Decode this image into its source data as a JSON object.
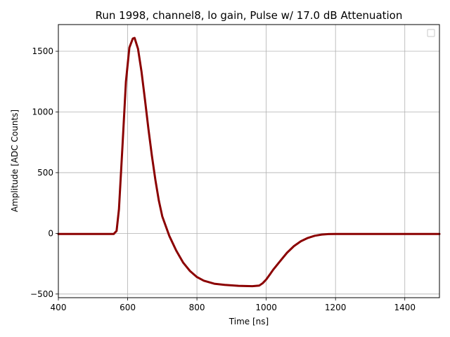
{
  "chart_data": {
    "type": "line",
    "title": "Run 1998, channel8, lo gain, Pulse w/ 17.0 dB Attenuation",
    "xlabel": "Time [ns]",
    "ylabel": "Amplitude [ADC Counts]",
    "xlim": [
      400,
      1500
    ],
    "ylim": [
      -530,
      1720
    ],
    "xticks": [
      400,
      600,
      800,
      1000,
      1200,
      1400
    ],
    "yticks": [
      -500,
      0,
      500,
      1000,
      1500
    ],
    "xtick_labels": [
      "400",
      "600",
      "800",
      "1000",
      "1200",
      "1400"
    ],
    "ytick_labels": [
      "−500",
      "0",
      "500",
      "1000",
      "1500"
    ],
    "grid": true,
    "legend": "top-right (empty)",
    "colors": {
      "series": "#8b0000",
      "grid": "#b0b0b0"
    },
    "series": [
      {
        "x": [
          400,
          500,
          560,
          568,
          575,
          585,
          595,
          605,
          615,
          620,
          630,
          640,
          650,
          660,
          670,
          680,
          690,
          700,
          720,
          740,
          760,
          780,
          800,
          820,
          850,
          880,
          920,
          960,
          980,
          990,
          1000,
          1010,
          1020,
          1040,
          1060,
          1080,
          1100,
          1120,
          1140,
          1160,
          1180,
          1200,
          1300,
          1400,
          1500
        ],
        "y": [
          -5,
          -5,
          -5,
          20,
          200,
          720,
          1250,
          1530,
          1605,
          1610,
          1520,
          1330,
          1100,
          860,
          640,
          440,
          270,
          140,
          -20,
          -140,
          -240,
          -310,
          -360,
          -390,
          -415,
          -425,
          -432,
          -435,
          -430,
          -410,
          -380,
          -340,
          -300,
          -230,
          -160,
          -105,
          -65,
          -38,
          -20,
          -10,
          -6,
          -5,
          -5,
          -5,
          -5
        ]
      }
    ]
  }
}
